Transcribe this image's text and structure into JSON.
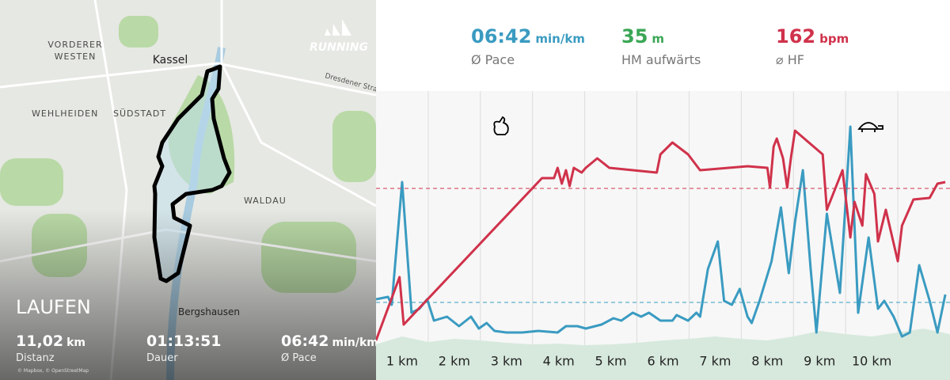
{
  "map": {
    "labels": [
      "VORDERER",
      "WESTEN",
      "Kassel",
      "Dresdener Straße",
      "WEHLHEIDEN",
      "SÜDSTADT",
      "WALDAU",
      "Bergshausen"
    ],
    "brand": "RUNNING",
    "activity": "LAUFEN",
    "attribution": "© Mapbox, © OpenStreetMap",
    "stats": [
      {
        "value": "11,02",
        "unit": "km",
        "label": "Distanz"
      },
      {
        "value": "01:13:51",
        "unit": "",
        "label": "Dauer"
      },
      {
        "value": "06:42",
        "unit": "min/km",
        "label": "Ø Pace"
      }
    ]
  },
  "summary": [
    {
      "value": "06:42",
      "unit": "min/km",
      "label": "Ø Pace",
      "color": "#3a9bc1"
    },
    {
      "value": "35",
      "unit": "m",
      "label": "HM aufwärts",
      "color": "#3aa655"
    },
    {
      "value": "162",
      "unit": "bpm",
      "label": "⌀ HF",
      "color": "#d0324b"
    }
  ],
  "chart_data": {
    "type": "line",
    "categories": [
      "1 km",
      "2 km",
      "3 km",
      "4 km",
      "5 km",
      "6 km",
      "7 km",
      "8 km",
      "9 km",
      "10 km"
    ],
    "xlim": [
      0,
      11
    ],
    "xticks": [
      1,
      2,
      3,
      4,
      5,
      6,
      7,
      8,
      9,
      10
    ],
    "ylim": [
      0,
      365
    ],
    "grid": true,
    "series": [
      {
        "color": "#d7e9dd",
        "style": "area",
        "x": [
          0,
          0.5,
          1,
          1.5,
          2,
          2.5,
          3,
          3.5,
          4,
          4.5,
          5,
          5.5,
          6,
          6.5,
          7,
          7.5,
          8,
          8.5,
          9,
          9.5,
          10,
          10.5,
          11
        ],
        "values": [
          45,
          55,
          48,
          52,
          50,
          47,
          45,
          46,
          44,
          45,
          47,
          50,
          52,
          55,
          52,
          50,
          55,
          62,
          58,
          55,
          60,
          65,
          58
        ]
      },
      {
        "color": "#3a9bc1",
        "mean": 98,
        "x": [
          0,
          0.23,
          0.3,
          0.5,
          0.68,
          0.83,
          0.98,
          1.11,
          1.36,
          1.59,
          1.82,
          1.97,
          2.12,
          2.27,
          2.5,
          2.8,
          3.11,
          3.48,
          3.64,
          3.86,
          4.02,
          4.32,
          4.55,
          4.7,
          4.92,
          5.08,
          5.23,
          5.45,
          5.68,
          5.76,
          5.98,
          6.14,
          6.21,
          6.36,
          6.55,
          6.67,
          6.82,
          6.97,
          7.12,
          7.2,
          7.35,
          7.58,
          7.76,
          7.91,
          8.03,
          8.18,
          8.33,
          8.44,
          8.64,
          8.89,
          9.09,
          9.24,
          9.44,
          9.62,
          9.74,
          9.92,
          10.08,
          10.23,
          10.41,
          10.61,
          10.76,
          10.91
        ],
        "values": [
          102,
          105,
          95,
          250,
          85,
          90,
          102,
          75,
          80,
          68,
          80,
          65,
          72,
          62,
          60,
          60,
          62,
          60,
          68,
          68,
          65,
          70,
          78,
          75,
          85,
          80,
          85,
          75,
          75,
          82,
          75,
          85,
          80,
          140,
          175,
          100,
          95,
          115,
          80,
          72,
          100,
          150,
          218,
          135,
          200,
          265,
          140,
          60,
          210,
          110,
          320,
          85,
          180,
          90,
          100,
          80,
          55,
          60,
          145,
          100,
          60,
          108
        ]
      },
      {
        "color": "#d0324b",
        "mean": 242,
        "x": [
          0,
          0.45,
          0.53,
          3.18,
          3.41,
          3.48,
          3.56,
          3.64,
          3.71,
          3.79,
          3.94,
          4.02,
          4.24,
          4.47,
          5.38,
          5.45,
          5.68,
          5.98,
          6.21,
          7.12,
          7.5,
          7.55,
          7.62,
          7.68,
          7.8,
          7.88,
          7.95,
          8.03,
          8.56,
          8.64,
          8.79,
          8.94,
          9.09,
          9.17,
          9.32,
          9.39,
          9.55,
          9.62,
          9.77,
          10.0,
          10.08,
          10.3,
          10.61,
          10.76,
          10.91
        ],
        "values": [
          50,
          130,
          70,
          255,
          255,
          268,
          248,
          265,
          245,
          268,
          262,
          268,
          280,
          268,
          262,
          285,
          300,
          285,
          265,
          270,
          268,
          243,
          295,
          305,
          280,
          243,
          280,
          315,
          285,
          215,
          240,
          265,
          180,
          225,
          195,
          260,
          235,
          175,
          215,
          150,
          195,
          228,
          230,
          248,
          250
        ]
      }
    ]
  }
}
